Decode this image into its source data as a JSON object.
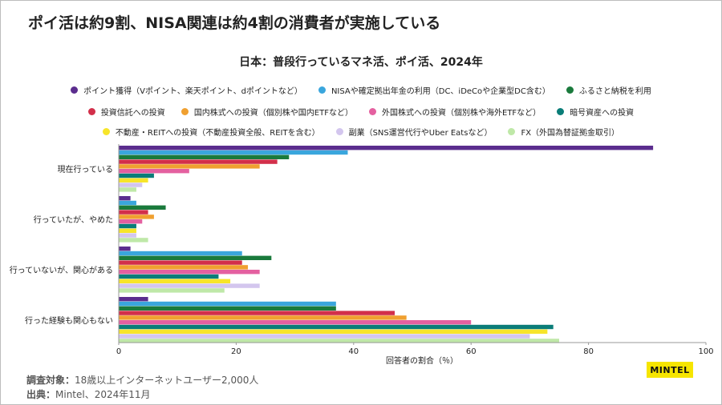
{
  "headline": "ポイ活は約9割、NISA関連は約4割の消費者が実施している",
  "footer": {
    "survey_label": "調査対象：",
    "survey_value": "18歳以上インターネットユーザー2,000人",
    "source_label": "出典：",
    "source_value": "Mintel、2024年11月"
  },
  "logo_text": "MINTEL",
  "chart_data": {
    "type": "bar",
    "orientation": "horizontal",
    "title": "日本：普段行っているマネ活、ポイ活、2024年",
    "xlabel": "回答者の割合（％）",
    "xlim": [
      0,
      100
    ],
    "xticks": [
      "0",
      "20",
      "40",
      "60",
      "80",
      "100"
    ],
    "grid": false,
    "legend_position": "top",
    "categories": [
      "現在行っている",
      "行っていたが、やめた",
      "行っていないが、関心がある",
      "行った経験も関心もない"
    ],
    "series": [
      {
        "name": "ポイント獲得（Vポイント、楽天ポイント、dポイントなど）",
        "color": "#5b2d8e",
        "values": [
          91,
          2,
          2,
          5
        ]
      },
      {
        "name": "NISAや確定拠出年金の利用（DC、iDeCoや企業型DC含む）",
        "color": "#3aa6dd",
        "values": [
          39,
          3,
          21,
          37
        ]
      },
      {
        "name": "ふるさと納税を利用",
        "color": "#1a7a3c",
        "values": [
          29,
          8,
          26,
          37
        ]
      },
      {
        "name": "投資信託への投資",
        "color": "#d22f4a",
        "values": [
          27,
          5,
          21,
          47
        ]
      },
      {
        "name": "国内株式への投資（個別株や国内ETFなど）",
        "color": "#f0a030",
        "values": [
          24,
          6,
          22,
          49
        ]
      },
      {
        "name": "外国株式への投資（個別株や海外ETFなど）",
        "color": "#e460a0",
        "values": [
          12,
          4,
          24,
          60
        ]
      },
      {
        "name": "暗号資産への投資",
        "color": "#0a7d78",
        "values": [
          6,
          3,
          17,
          74
        ]
      },
      {
        "name": "不動産・REITへの投資（不動産投資全般、REITを含む）",
        "color": "#f7e52a",
        "values": [
          5,
          3,
          19,
          73
        ]
      },
      {
        "name": "副業（SNS運営代行やUber Eatsなど）",
        "color": "#d3c6ee",
        "values": [
          4,
          3,
          24,
          70
        ]
      },
      {
        "name": "FX（外国為替証拠金取引）",
        "color": "#bfe8a8",
        "values": [
          3,
          5,
          18,
          75
        ]
      }
    ]
  }
}
